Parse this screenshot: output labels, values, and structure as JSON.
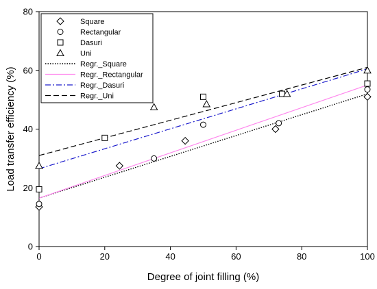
{
  "chart_data": {
    "type": "scatter",
    "xlabel": "Degree of joint filling (%)",
    "ylabel": "Load transfer efficiency (%)",
    "xlim": [
      0,
      100
    ],
    "ylim": [
      0,
      80
    ],
    "xticks": [
      "0",
      "20",
      "40",
      "60",
      "80",
      "100"
    ],
    "yticks": [
      "0",
      "20",
      "40",
      "60",
      "80"
    ],
    "grid": false,
    "legend_position": "top-left",
    "series": [
      {
        "name": "Square",
        "marker": "diamond",
        "points": [
          [
            0,
            13.5
          ],
          [
            24.5,
            27.5
          ],
          [
            44.5,
            36
          ],
          [
            72,
            40
          ],
          [
            100,
            51
          ]
        ]
      },
      {
        "name": "Rectangular",
        "marker": "circle",
        "points": [
          [
            0,
            14.5
          ],
          [
            35,
            30
          ],
          [
            50,
            41.5
          ],
          [
            73,
            42
          ],
          [
            100,
            53.5
          ]
        ]
      },
      {
        "name": "Dasuri",
        "marker": "square",
        "points": [
          [
            0,
            19.5
          ],
          [
            20,
            37
          ],
          [
            50,
            51
          ],
          [
            74,
            52
          ],
          [
            100,
            55.5
          ]
        ]
      },
      {
        "name": "Uni",
        "marker": "triangle",
        "points": [
          [
            0,
            27.5
          ],
          [
            35,
            47.5
          ],
          [
            51,
            48.5
          ],
          [
            75.5,
            52
          ],
          [
            100,
            60
          ]
        ]
      },
      {
        "name": "Regr._Square",
        "line": "dotted",
        "color": "#000000",
        "points": [
          [
            0,
            16.5
          ],
          [
            100,
            52
          ]
        ]
      },
      {
        "name": "Regr._Rectangular",
        "line": "solid",
        "color": "#ff88ee",
        "points": [
          [
            0,
            16.5
          ],
          [
            100,
            55
          ]
        ]
      },
      {
        "name": "Regr._Dasuri",
        "line": "dashdot",
        "color": "#1a1acc",
        "points": [
          [
            0,
            26.5
          ],
          [
            100,
            60.5
          ]
        ]
      },
      {
        "name": "Regr._Uni",
        "line": "dashed",
        "color": "#000000",
        "points": [
          [
            0,
            31
          ],
          [
            100,
            61
          ]
        ]
      }
    ]
  }
}
